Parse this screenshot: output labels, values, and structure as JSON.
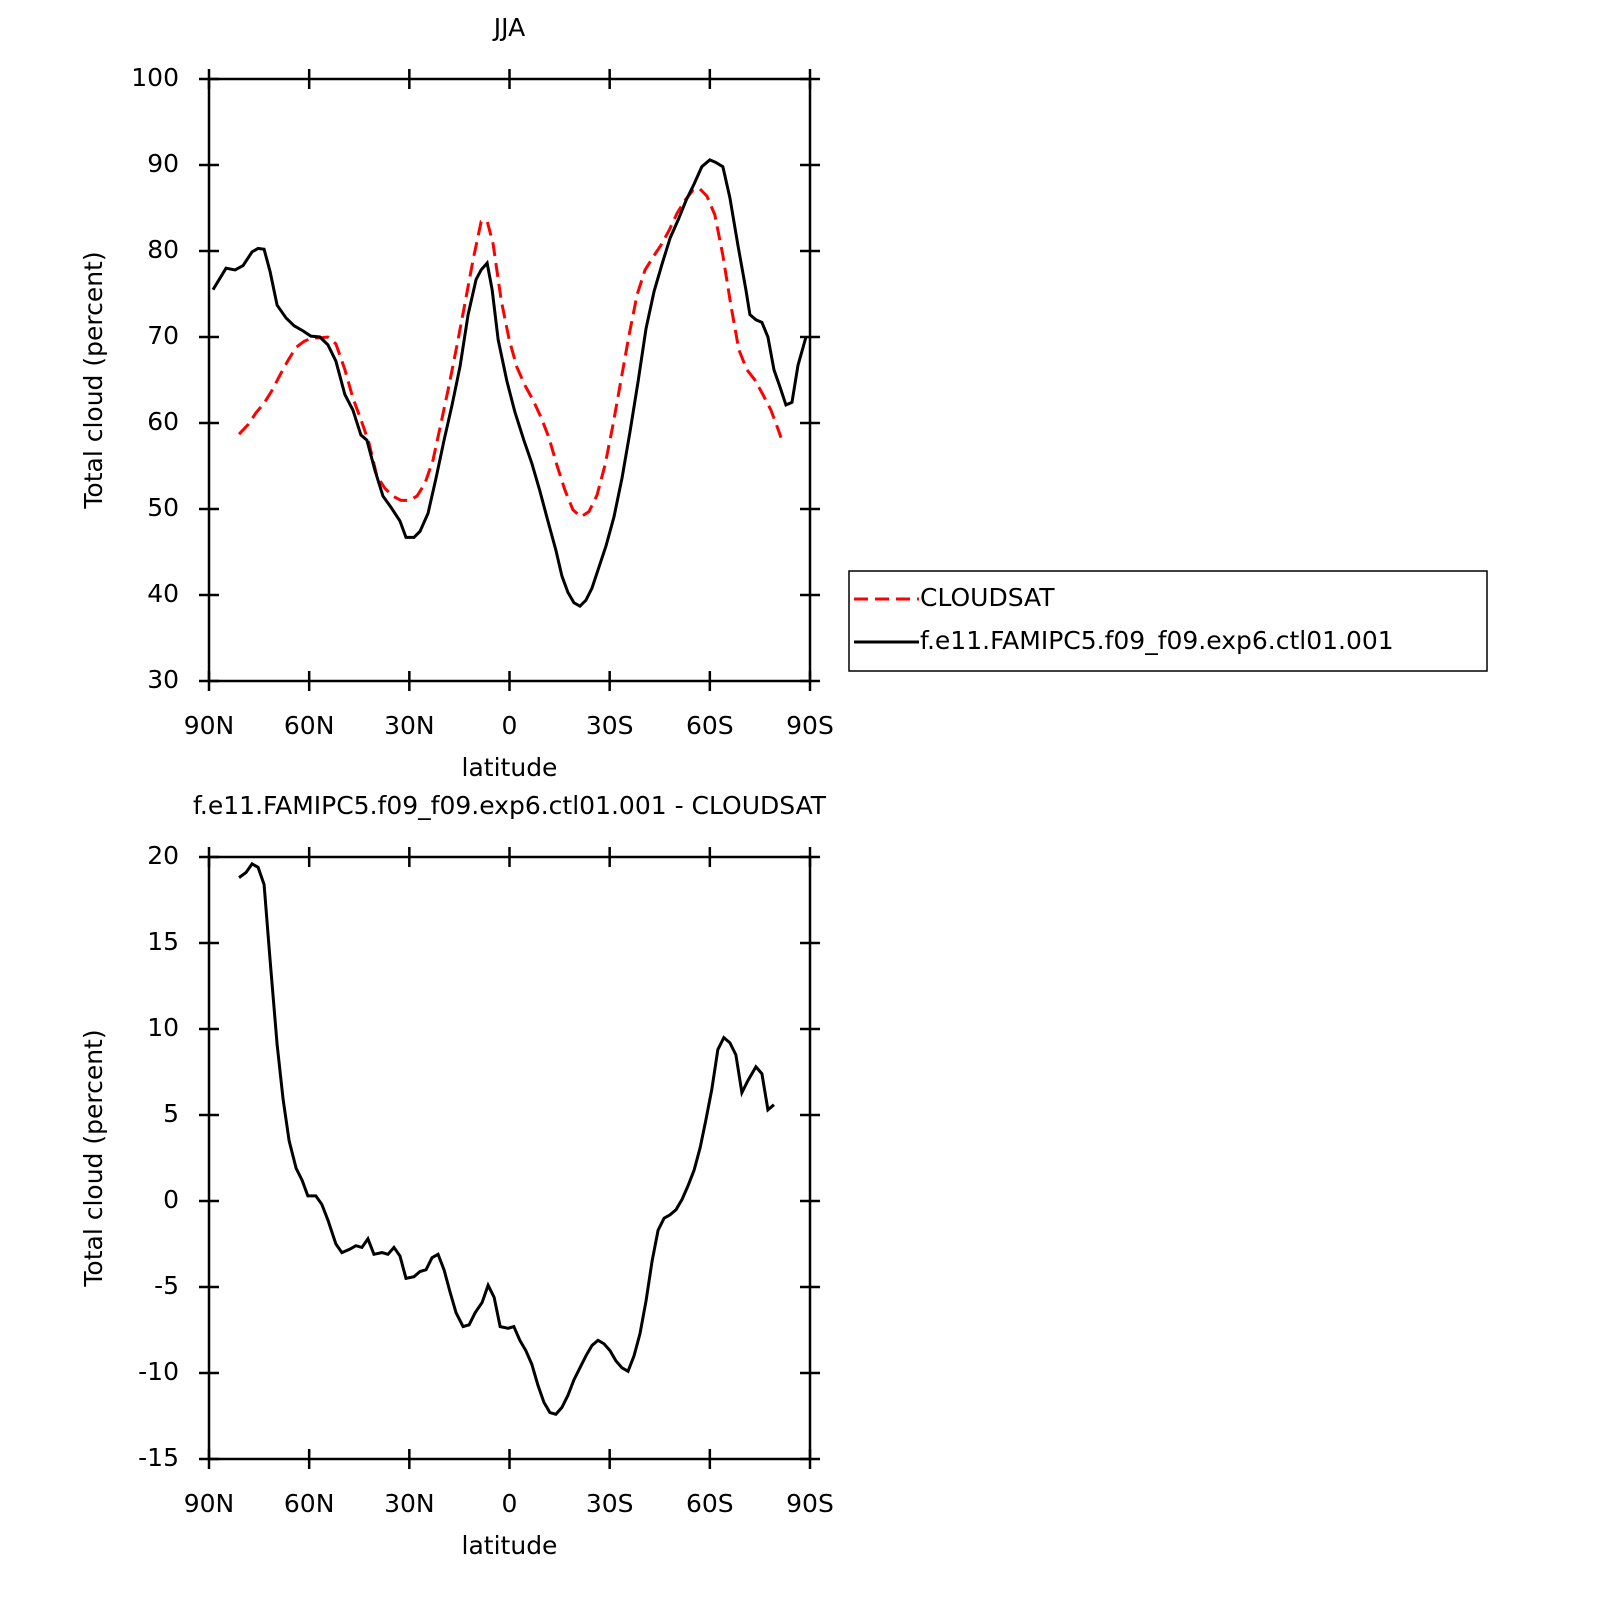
{
  "chart_data": [
    {
      "type": "line",
      "title": "JJA",
      "xlabel": "latitude",
      "ylabel": "Total cloud (percent)",
      "xlim": [
        90,
        -90
      ],
      "xticks": [
        {
          "value": 90,
          "label": "90N"
        },
        {
          "value": 60,
          "label": "60N"
        },
        {
          "value": 30,
          "label": "30N"
        },
        0,
        {
          "value": -30,
          "label": "30S"
        },
        {
          "value": -60,
          "label": "60S"
        },
        {
          "value": -90,
          "label": "90S"
        }
      ],
      "ylim": [
        30,
        100
      ],
      "yticks": [
        30,
        40,
        50,
        60,
        70,
        80,
        90,
        100
      ],
      "legend": "right",
      "series": [
        {
          "name": "CLOUDSAT",
          "color": "#ff0000",
          "dash": true,
          "x": [
            81.0,
            78.3,
            75.9,
            73.5,
            71.1,
            68.7,
            66.3,
            63.9,
            61.5,
            59.1,
            56.8,
            54.4,
            52.0,
            49.3,
            46.9,
            44.5,
            42.1,
            39.7,
            37.3,
            34.9,
            32.5,
            30.1,
            27.7,
            25.3,
            22.9,
            20.5,
            18.1,
            15.7,
            13.3,
            10.9,
            8.5,
            6.7,
            4.9,
            2.5,
            0.1,
            -2.2,
            -4.6,
            -7.0,
            -9.4,
            -11.8,
            -14.2,
            -16.6,
            -19.0,
            -21.4,
            -23.8,
            -26.2,
            -28.6,
            -31.0,
            -33.4,
            -35.8,
            -38.2,
            -40.6,
            -43.0,
            -45.4,
            -47.8,
            -50.2,
            -52.6,
            -55.0,
            -56.8,
            -59.1,
            -61.5,
            -63.9,
            -66.3,
            -68.7,
            -71.1,
            -73.5,
            -75.9,
            -78.3,
            -80.7,
            -81.3
          ],
          "values": [
            58.7,
            59.8,
            61.2,
            62.3,
            63.8,
            65.6,
            67.3,
            68.8,
            69.5,
            69.9,
            69.9,
            70.0,
            69.2,
            66.2,
            62.9,
            60.4,
            57.7,
            53.8,
            52.4,
            51.5,
            51.0,
            51.0,
            51.5,
            53.0,
            55.7,
            60.0,
            64.4,
            69.1,
            74.0,
            79.0,
            83.4,
            83.5,
            80.8,
            74.3,
            69.7,
            66.5,
            64.4,
            62.7,
            60.7,
            58.3,
            55.1,
            52.2,
            49.9,
            49.1,
            49.7,
            51.6,
            55.1,
            59.8,
            65.0,
            70.2,
            74.9,
            77.8,
            79.3,
            80.7,
            82.4,
            84.4,
            85.9,
            87.1,
            87.3,
            86.4,
            84.2,
            79.5,
            73.7,
            68.5,
            66.2,
            65.0,
            63.3,
            61.5,
            59.0,
            58.3
          ]
        },
        {
          "name": "f.e11.FAMIPC5.f09_f09.exp6.ctl01.001",
          "color": "#000000",
          "dash": false,
          "x": [
            88.8,
            84.9,
            82.2,
            79.8,
            77.1,
            75.3,
            73.5,
            71.7,
            69.6,
            66.9,
            64.5,
            61.8,
            59.5,
            56.8,
            54.4,
            52.0,
            49.3,
            46.9,
            44.5,
            42.7,
            40.3,
            37.9,
            35.5,
            32.8,
            31.0,
            28.6,
            26.8,
            24.4,
            22.0,
            19.6,
            17.2,
            14.8,
            12.4,
            10.0,
            8.5,
            6.7,
            5.2,
            3.4,
            0.8,
            -1.6,
            -4.3,
            -6.7,
            -9.1,
            -11.5,
            -13.9,
            -15.7,
            -17.5,
            -19.3,
            -21.1,
            -22.9,
            -24.7,
            -26.5,
            -28.9,
            -31.3,
            -33.7,
            -36.1,
            -38.5,
            -40.9,
            -43.3,
            -45.7,
            -48.1,
            -50.5,
            -52.9,
            -55.3,
            -57.6,
            -60.0,
            -61.8,
            -63.9,
            -66.0,
            -68.4,
            -70.8,
            -72.0,
            -73.8,
            -75.6,
            -77.4,
            -79.2,
            -81.0,
            -82.8,
            -84.6,
            -86.4,
            -88.8
          ],
          "values": [
            75.5,
            78.0,
            77.8,
            78.3,
            79.9,
            80.3,
            80.2,
            77.6,
            73.7,
            72.2,
            71.3,
            70.7,
            70.1,
            70.0,
            69.1,
            67.2,
            63.3,
            61.5,
            58.6,
            58.0,
            54.5,
            51.5,
            50.2,
            48.6,
            46.7,
            46.7,
            47.4,
            49.5,
            53.6,
            58.0,
            62.1,
            66.6,
            72.6,
            76.7,
            77.8,
            78.6,
            75.5,
            69.7,
            64.9,
            61.3,
            58.0,
            55.3,
            52.1,
            48.6,
            45.2,
            42.2,
            40.3,
            39.1,
            38.7,
            39.4,
            40.8,
            42.9,
            45.7,
            49.1,
            53.6,
            59.0,
            64.8,
            71.0,
            75.3,
            78.5,
            81.5,
            83.6,
            85.9,
            87.8,
            89.8,
            90.6,
            90.3,
            89.8,
            86.2,
            80.7,
            75.5,
            72.6,
            72.0,
            71.7,
            70.0,
            66.2,
            64.2,
            62.1,
            62.4,
            66.7,
            70.0
          ]
        }
      ]
    },
    {
      "type": "line",
      "title": "f.e11.FAMIPC5.f09_f09.exp6.ctl01.001 - CLOUDSAT",
      "xlabel": "latitude",
      "ylabel": "Total cloud (percent)",
      "xlim": [
        90,
        -90
      ],
      "xticks": [
        {
          "value": 90,
          "label": "90N"
        },
        {
          "value": 60,
          "label": "60N"
        },
        {
          "value": 30,
          "label": "30N"
        },
        0,
        {
          "value": -30,
          "label": "30S"
        },
        {
          "value": -60,
          "label": "60S"
        },
        {
          "value": -90,
          "label": "90S"
        }
      ],
      "ylim": [
        -15,
        20
      ],
      "yticks": [
        -15,
        -10,
        -5,
        0,
        5,
        10,
        15,
        20
      ],
      "series": [
        {
          "color": "#000000",
          "dash": false,
          "x": [
            81.0,
            78.9,
            77.1,
            75.3,
            73.5,
            71.7,
            69.6,
            67.8,
            66.0,
            63.9,
            62.1,
            60.4,
            58.0,
            56.2,
            54.4,
            52.0,
            50.2,
            47.8,
            46.0,
            44.2,
            42.4,
            40.6,
            38.2,
            36.4,
            34.6,
            32.8,
            31.0,
            28.6,
            26.8,
            25.0,
            23.2,
            21.4,
            19.6,
            17.8,
            16.0,
            13.9,
            12.1,
            10.3,
            8.2,
            6.4,
            4.6,
            2.8,
            0.4,
            -1.3,
            -3.1,
            -4.9,
            -6.7,
            -8.5,
            -10.3,
            -12.1,
            -13.9,
            -15.7,
            -17.5,
            -19.3,
            -21.1,
            -22.9,
            -24.7,
            -26.5,
            -28.3,
            -30.1,
            -31.9,
            -33.7,
            -35.5,
            -37.3,
            -39.1,
            -40.9,
            -42.7,
            -44.5,
            -46.3,
            -48.1,
            -49.9,
            -51.7,
            -53.5,
            -55.3,
            -57.1,
            -58.8,
            -60.6,
            -62.4,
            -64.2,
            -66.0,
            -67.8,
            -69.6,
            -71.4,
            -73.8,
            -75.6,
            -77.4,
            -79.2
          ],
          "values": [
            18.8,
            19.1,
            19.6,
            19.4,
            18.4,
            14.0,
            9.1,
            5.9,
            3.5,
            1.9,
            1.2,
            0.3,
            0.3,
            -0.2,
            -1.1,
            -2.5,
            -3.0,
            -2.8,
            -2.6,
            -2.7,
            -2.2,
            -3.1,
            -3.0,
            -3.1,
            -2.7,
            -3.2,
            -4.5,
            -4.4,
            -4.1,
            -4.0,
            -3.3,
            -3.1,
            -4.0,
            -5.3,
            -6.5,
            -7.3,
            -7.2,
            -6.5,
            -5.9,
            -4.9,
            -5.6,
            -7.3,
            -7.4,
            -7.3,
            -8.1,
            -8.7,
            -9.5,
            -10.7,
            -11.7,
            -12.3,
            -12.4,
            -12.0,
            -11.3,
            -10.4,
            -9.7,
            -9.0,
            -8.4,
            -8.1,
            -8.3,
            -8.7,
            -9.3,
            -9.7,
            -9.9,
            -9.0,
            -7.7,
            -5.8,
            -3.5,
            -1.7,
            -1.0,
            -0.8,
            -0.5,
            0.1,
            0.9,
            1.8,
            3.1,
            4.7,
            6.5,
            8.8,
            9.5,
            9.2,
            8.5,
            6.3,
            7.0,
            7.8,
            7.4,
            5.3,
            5.6
          ]
        }
      ]
    }
  ]
}
